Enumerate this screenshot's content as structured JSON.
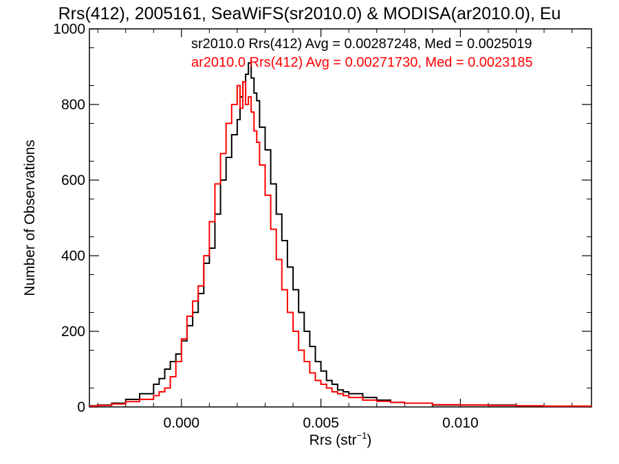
{
  "chart_data": {
    "type": "line",
    "title": "Rrs(412), 2005161, SeaWiFS(sr2010.0) & MODISA(ar2010.0), Eu",
    "xlabel": "Rrs (str",
    "xlabel_sup": "−1",
    "xlabel_end": ")",
    "ylabel": "Number of Observations",
    "xlim": [
      -0.0033,
      0.0147
    ],
    "ylim": [
      0,
      1000
    ],
    "x_ticks": [
      0.0,
      0.005,
      0.01
    ],
    "x_tick_labels": [
      "0.000",
      "0.005",
      "0.010"
    ],
    "y_ticks": [
      0,
      200,
      400,
      600,
      800,
      1000
    ],
    "y_tick_labels": [
      "0",
      "200",
      "400",
      "600",
      "800",
      "1000"
    ],
    "legend_position": "top-right",
    "grid": false,
    "series": [
      {
        "name": "sr2010.0 Rrs(412) Avg = 0.00287248, Med = 0.0025019",
        "color": "#000000",
        "x": [
          -0.0033,
          -0.003,
          -0.0025,
          -0.002,
          -0.0015,
          -0.001,
          -0.0008,
          -0.0006,
          -0.0004,
          -0.0002,
          0.0,
          0.0002,
          0.0004,
          0.0006,
          0.0008,
          0.001,
          0.0012,
          0.0014,
          0.0016,
          0.0018,
          0.002,
          0.0021,
          0.0022,
          0.0023,
          0.0024,
          0.0025,
          0.0026,
          0.0027,
          0.0028,
          0.003,
          0.0032,
          0.0034,
          0.0036,
          0.0038,
          0.004,
          0.0042,
          0.0044,
          0.0046,
          0.0048,
          0.005,
          0.0052,
          0.0054,
          0.0056,
          0.0058,
          0.006,
          0.0065,
          0.007,
          0.0075,
          0.008,
          0.009,
          0.01,
          0.011,
          0.012,
          0.013,
          0.014,
          0.0147
        ],
        "y": [
          3,
          5,
          10,
          20,
          35,
          60,
          75,
          100,
          120,
          140,
          175,
          215,
          250,
          300,
          380,
          420,
          510,
          600,
          660,
          720,
          760,
          820,
          860,
          880,
          910,
          870,
          830,
          810,
          740,
          680,
          590,
          510,
          440,
          370,
          310,
          250,
          200,
          160,
          120,
          95,
          70,
          60,
          45,
          40,
          35,
          25,
          18,
          12,
          10,
          5,
          5,
          5,
          3,
          2,
          2,
          2
        ]
      },
      {
        "name": "ar2010.0 Rrs(412) Avg = 0.00271730, Med = 0.0023185",
        "color": "#ff0000",
        "x": [
          -0.0033,
          -0.003,
          -0.0025,
          -0.002,
          -0.0015,
          -0.001,
          -0.0008,
          -0.0006,
          -0.0004,
          -0.0002,
          0.0,
          0.0002,
          0.0004,
          0.0006,
          0.0008,
          0.001,
          0.0012,
          0.0014,
          0.0016,
          0.0018,
          0.002,
          0.0021,
          0.0022,
          0.0023,
          0.0024,
          0.0025,
          0.0026,
          0.0027,
          0.0028,
          0.003,
          0.0032,
          0.0034,
          0.0036,
          0.0038,
          0.004,
          0.0042,
          0.0044,
          0.0046,
          0.0048,
          0.005,
          0.0052,
          0.0054,
          0.0056,
          0.0058,
          0.006,
          0.0065,
          0.007,
          0.0075,
          0.008,
          0.009,
          0.01,
          0.011,
          0.012,
          0.013,
          0.014,
          0.0147
        ],
        "y": [
          2,
          4,
          8,
          14,
          20,
          30,
          40,
          50,
          80,
          120,
          180,
          240,
          280,
          320,
          400,
          490,
          590,
          670,
          750,
          800,
          850,
          790,
          860,
          800,
          820,
          780,
          730,
          700,
          640,
          560,
          470,
          390,
          310,
          250,
          200,
          150,
          120,
          90,
          70,
          60,
          50,
          40,
          35,
          30,
          25,
          18,
          15,
          12,
          10,
          6,
          5,
          4,
          3,
          2,
          2,
          2
        ]
      }
    ]
  }
}
